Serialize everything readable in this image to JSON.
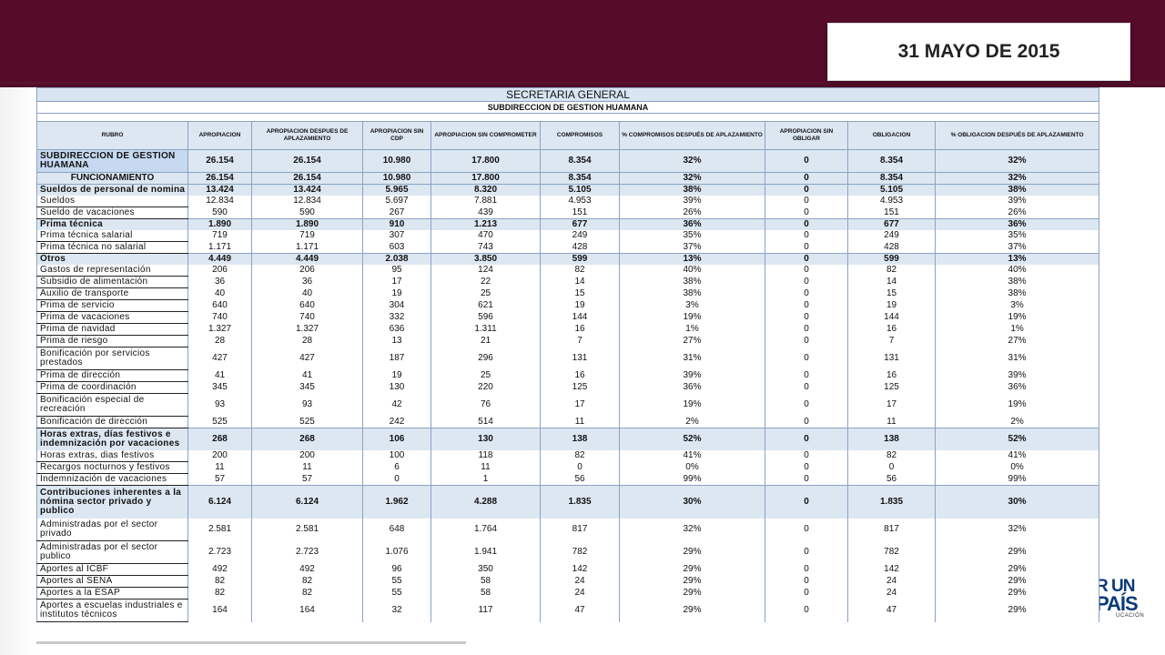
{
  "date_label": "31 MAYO DE 2015",
  "logo": {
    "line1": "R UN",
    "line2": "PAÍS",
    "line3": "UCACIÓN"
  },
  "sheet": {
    "title": "SECRETARIA GENERAL",
    "subtitle": "SUBDIRECCION DE GESTION HUAMANA",
    "headers": [
      "RUBRO",
      "APROPIACION",
      "APROPIACION DESPUES DE APLAZAMIENTO",
      "APROPIACION SIN CDP",
      "APROPIACION SIN COMPROMETER",
      "COMPROMISOS",
      "% COMPROMISOS DESPUÉS DE APLAZAMIENTO",
      "APROPIACION SIN OBLIGAR",
      "OBLIGACION",
      "% OBLIGACION DESPUÉS DE APLAZAMIENTO"
    ],
    "rows": [
      {
        "style": "main",
        "h": 2,
        "cells": [
          "SUBDIRECCION DE GESTION HUAMANA",
          "26.154",
          "26.154",
          "10.980",
          "17.800",
          "8.354",
          "32%",
          "0",
          "8.354",
          "32%"
        ]
      },
      {
        "style": "sec",
        "h": 1,
        "center": true,
        "cells": [
          "FUNCIONAMIENTO",
          "26.154",
          "26.154",
          "10.980",
          "17.800",
          "8.354",
          "32%",
          "0",
          "8.354",
          "32%"
        ]
      },
      {
        "style": "sec",
        "h": 1,
        "cells": [
          "Sueldos de personal de nomina",
          "13.424",
          "13.424",
          "5.965",
          "8.320",
          "5.105",
          "38%",
          "0",
          "5.105",
          "38%"
        ]
      },
      {
        "style": "plain",
        "h": 1,
        "cells": [
          "Sueldos",
          "12.834",
          "12.834",
          "5.697",
          "7.881",
          "4.953",
          "39%",
          "0",
          "4.953",
          "39%"
        ]
      },
      {
        "style": "plain",
        "h": 1,
        "cells": [
          "Sueldo de vacaciones",
          "590",
          "590",
          "267",
          "439",
          "151",
          "26%",
          "0",
          "151",
          "26%"
        ]
      },
      {
        "style": "sec",
        "h": 1,
        "cells": [
          "Prima técnica",
          "1.890",
          "1.890",
          "910",
          "1.213",
          "677",
          "36%",
          "0",
          "677",
          "36%"
        ]
      },
      {
        "style": "plain",
        "h": 1,
        "cells": [
          "Prima técnica salarial",
          "719",
          "719",
          "307",
          "470",
          "249",
          "35%",
          "0",
          "249",
          "35%"
        ]
      },
      {
        "style": "plain",
        "h": 1,
        "cells": [
          "Prima técnica no salarial",
          "1.171",
          "1.171",
          "603",
          "743",
          "428",
          "37%",
          "0",
          "428",
          "37%"
        ]
      },
      {
        "style": "sec",
        "h": 1,
        "cells": [
          "Otros",
          "4.449",
          "4.449",
          "2.038",
          "3.850",
          "599",
          "13%",
          "0",
          "599",
          "13%"
        ]
      },
      {
        "style": "plain",
        "h": 1,
        "cells": [
          "Gastos de representación",
          "206",
          "206",
          "95",
          "124",
          "82",
          "40%",
          "0",
          "82",
          "40%"
        ]
      },
      {
        "style": "plain",
        "h": 1,
        "cells": [
          "Subsidio de alimentación",
          "36",
          "36",
          "17",
          "22",
          "14",
          "38%",
          "0",
          "14",
          "38%"
        ]
      },
      {
        "style": "plain",
        "h": 1,
        "cells": [
          "Auxilio de transporte",
          "40",
          "40",
          "19",
          "25",
          "15",
          "38%",
          "0",
          "15",
          "38%"
        ]
      },
      {
        "style": "plain",
        "h": 1,
        "cells": [
          "Prima de servicio",
          "640",
          "640",
          "304",
          "621",
          "19",
          "3%",
          "0",
          "19",
          "3%"
        ]
      },
      {
        "style": "plain",
        "h": 1,
        "cells": [
          "Prima de vacaciones",
          "740",
          "740",
          "332",
          "596",
          "144",
          "19%",
          "0",
          "144",
          "19%"
        ]
      },
      {
        "style": "plain",
        "h": 1,
        "cells": [
          "Prima de navidad",
          "1.327",
          "1.327",
          "636",
          "1.311",
          "16",
          "1%",
          "0",
          "16",
          "1%"
        ]
      },
      {
        "style": "plain",
        "h": 1,
        "cells": [
          "Prima de riesgo",
          "28",
          "28",
          "13",
          "21",
          "7",
          "27%",
          "0",
          "7",
          "27%"
        ]
      },
      {
        "style": "plain",
        "h": 2,
        "cells": [
          "Bonificación por servicios prestados",
          "427",
          "427",
          "187",
          "296",
          "131",
          "31%",
          "0",
          "131",
          "31%"
        ]
      },
      {
        "style": "plain",
        "h": 1,
        "cells": [
          "Prima de dirección",
          "41",
          "41",
          "19",
          "25",
          "16",
          "39%",
          "0",
          "16",
          "39%"
        ]
      },
      {
        "style": "plain",
        "h": 1,
        "cells": [
          "Prima de coordinación",
          "345",
          "345",
          "130",
          "220",
          "125",
          "36%",
          "0",
          "125",
          "36%"
        ]
      },
      {
        "style": "plain",
        "h": 2,
        "cells": [
          "Bonificación especial de recreación",
          "93",
          "93",
          "42",
          "76",
          "17",
          "19%",
          "0",
          "17",
          "19%"
        ]
      },
      {
        "style": "plain",
        "h": 1,
        "cells": [
          "Bonificación de dirección",
          "525",
          "525",
          "242",
          "514",
          "11",
          "2%",
          "0",
          "11",
          "2%"
        ]
      },
      {
        "style": "sec",
        "h": 2,
        "cells": [
          "Horas extras, días festivos e indemnización por vacaciones",
          "268",
          "268",
          "106",
          "130",
          "138",
          "52%",
          "0",
          "138",
          "52%"
        ]
      },
      {
        "style": "plain",
        "h": 1,
        "cells": [
          "Horas extras, dias festivos",
          "200",
          "200",
          "100",
          "118",
          "82",
          "41%",
          "0",
          "82",
          "41%"
        ]
      },
      {
        "style": "plain",
        "h": 1,
        "cells": [
          "Recargos nocturnos y festivos",
          "11",
          "11",
          "6",
          "11",
          "0",
          "0%",
          "0",
          "0",
          "0%"
        ]
      },
      {
        "style": "plain",
        "h": 1,
        "cells": [
          "Indemnización de vacaciones",
          "57",
          "57",
          "0",
          "1",
          "56",
          "99%",
          "0",
          "56",
          "99%"
        ]
      },
      {
        "style": "sec",
        "h": 3,
        "cells": [
          "Contribuciones inherentes a la nómina sector privado y publico",
          "6.124",
          "6.124",
          "1.962",
          "4.288",
          "1.835",
          "30%",
          "0",
          "1.835",
          "30%"
        ]
      },
      {
        "style": "plain",
        "h": 2,
        "cells": [
          "Administradas por el sector privado",
          "2.581",
          "2.581",
          "648",
          "1.764",
          "817",
          "32%",
          "0",
          "817",
          "32%"
        ]
      },
      {
        "style": "plain",
        "h": 2,
        "cells": [
          "Administradas por el sector publico",
          "2.723",
          "2.723",
          "1.076",
          "1.941",
          "782",
          "29%",
          "0",
          "782",
          "29%"
        ]
      },
      {
        "style": "plain",
        "h": 1,
        "cells": [
          "Aportes al ICBF",
          "492",
          "492",
          "96",
          "350",
          "142",
          "29%",
          "0",
          "142",
          "29%"
        ]
      },
      {
        "style": "plain",
        "h": 1,
        "cells": [
          "Aportes al SENA",
          "82",
          "82",
          "55",
          "58",
          "24",
          "29%",
          "0",
          "24",
          "29%"
        ]
      },
      {
        "style": "plain",
        "h": 1,
        "cells": [
          "Aportes a la ESAP",
          "82",
          "82",
          "55",
          "58",
          "24",
          "29%",
          "0",
          "24",
          "29%"
        ]
      },
      {
        "style": "plain",
        "h": 2,
        "cells": [
          "Aportes a escuelas industriales e institutos técnicos",
          "164",
          "164",
          "32",
          "117",
          "47",
          "29%",
          "0",
          "47",
          "29%"
        ]
      }
    ]
  }
}
